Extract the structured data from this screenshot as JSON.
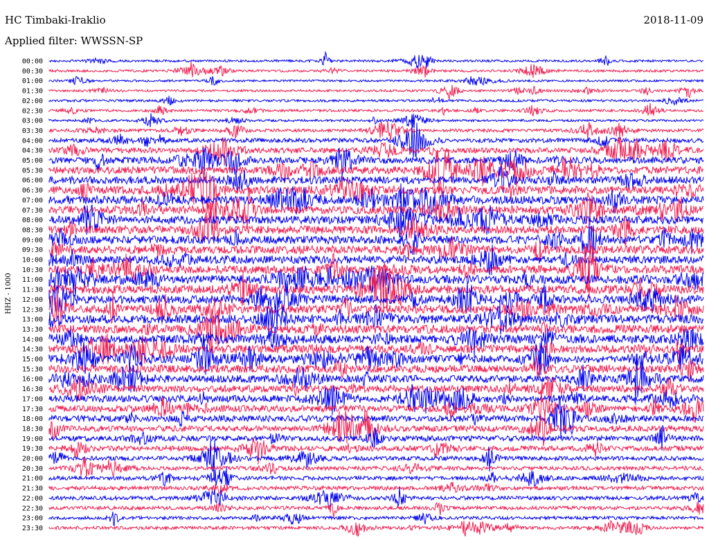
{
  "header": {
    "station": "HC Timbaki-Iraklio",
    "date": "2018-11-09",
    "filter": "Applied filter: WWSSN-SP"
  },
  "channel_label": "HHZ - 1000",
  "chart_data": {
    "type": "line",
    "description_kind": "helicorder",
    "row_labels": [
      "00:00",
      "00:30",
      "01:00",
      "01:30",
      "02:00",
      "02:30",
      "03:00",
      "03:30",
      "04:00",
      "04:30",
      "05:00",
      "05:30",
      "06:00",
      "06:30",
      "07:00",
      "07:30",
      "08:00",
      "08:30",
      "09:00",
      "09:30",
      "10:00",
      "10:30",
      "11:00",
      "11:30",
      "12:00",
      "12:30",
      "13:00",
      "13:30",
      "14:00",
      "14:30",
      "15:00",
      "15:30",
      "16:00",
      "16:30",
      "17:00",
      "17:30",
      "18:00",
      "18:30",
      "19:00",
      "19:30",
      "20:00",
      "20:30",
      "21:00",
      "21:30",
      "22:00",
      "22:30",
      "23:00",
      "23:30"
    ],
    "row_colors": [
      "#0000ee",
      "#ee1e50"
    ],
    "amplitude_profile": [
      0.08,
      0.1,
      0.06,
      0.08,
      0.1,
      0.1,
      0.08,
      0.2,
      0.35,
      0.5,
      0.65,
      0.75,
      0.8,
      0.85,
      0.85,
      0.85,
      0.85,
      0.85,
      0.85,
      0.85,
      0.85,
      0.85,
      0.9,
      0.9,
      0.9,
      0.9,
      0.9,
      0.9,
      0.9,
      0.85,
      0.8,
      0.8,
      0.75,
      0.7,
      0.7,
      0.65,
      0.6,
      0.55,
      0.5,
      0.45,
      0.35,
      0.3,
      0.3,
      0.3,
      0.3,
      0.25,
      0.2,
      0.2
    ]
  }
}
